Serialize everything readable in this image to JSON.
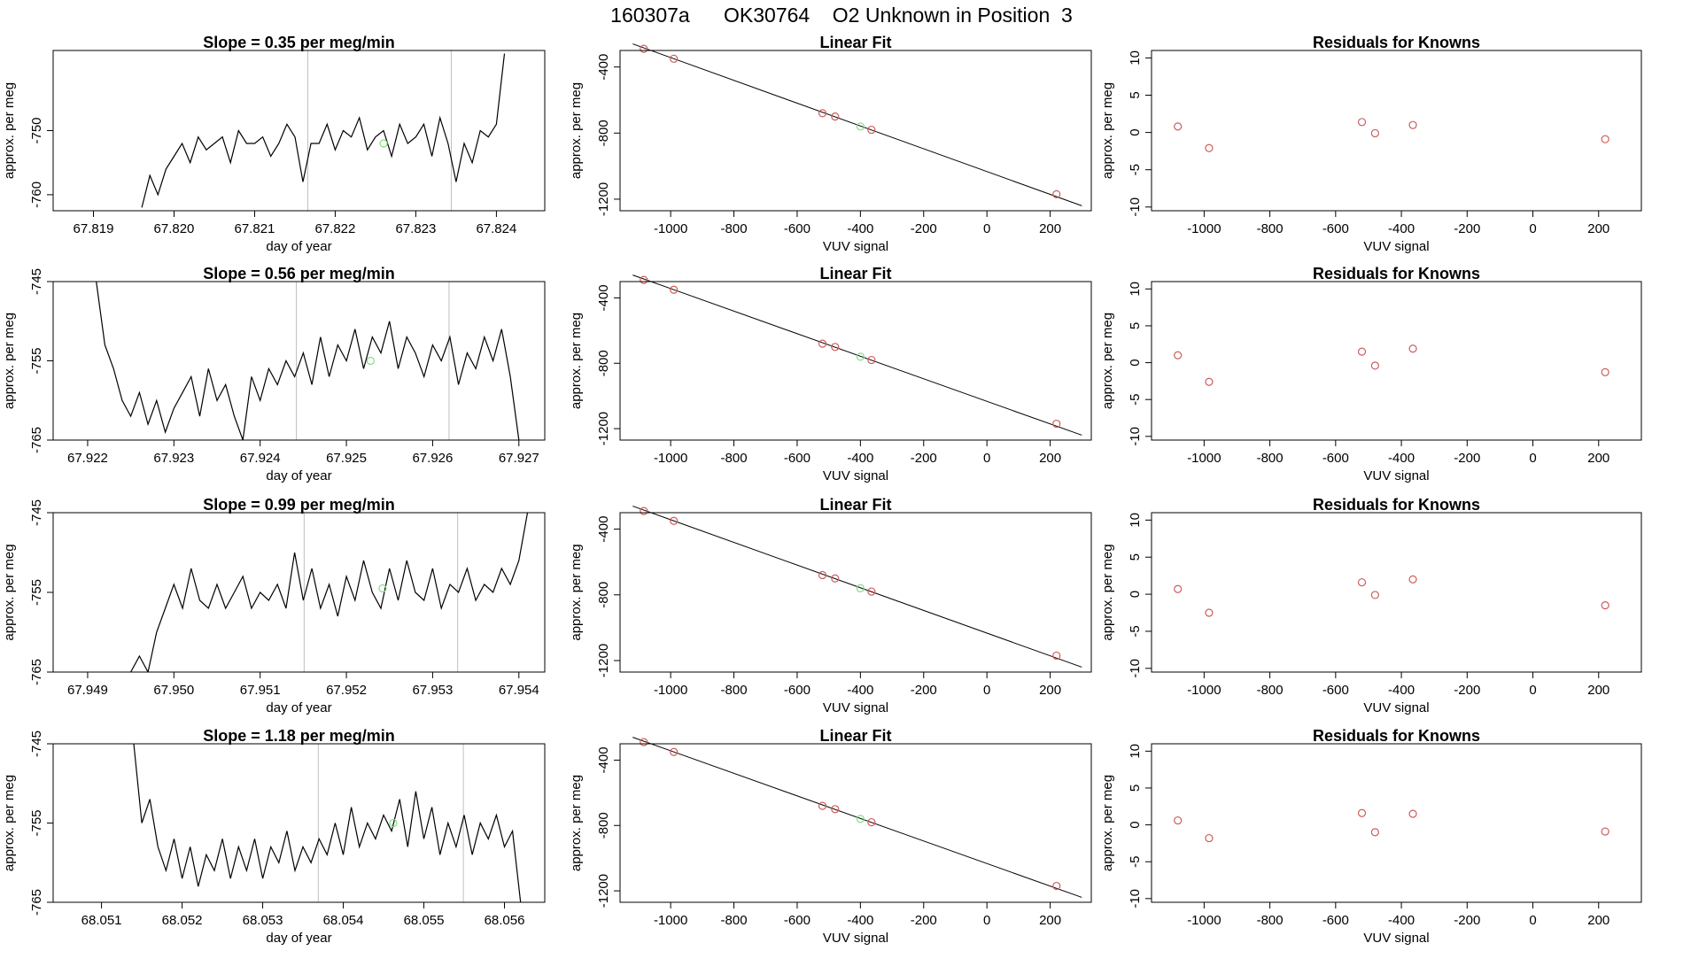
{
  "page": {
    "title": "160307a      OK30764    O2 Unknown in Position  3"
  },
  "colors": {
    "trace": "#000000",
    "known_point": "#cd5c5c",
    "unknown_point": "#7fe07f",
    "vline": "#bfbfbf"
  },
  "chart_data": [
    {
      "type": "line",
      "row": 0,
      "col": 0,
      "title": "Slope =  0.35  per meg/min",
      "xlabel": "day of year",
      "ylabel": "approx. per meg",
      "xlim": [
        67.8185,
        67.8246
      ],
      "ylim": [
        -762.5,
        -737.5
      ],
      "xticks": [
        "67.819",
        "67.820",
        "67.821",
        "67.822",
        "67.823",
        "67.824"
      ],
      "yticks": [
        "-750",
        "-760"
      ],
      "vlines": [
        67.82166,
        67.82344
      ],
      "unknown_point": [
        67.8226,
        -752.0
      ],
      "x": [
        67.8196,
        67.8197,
        67.8198,
        67.8199,
        67.82,
        67.8201,
        67.8202,
        67.8203,
        67.8204,
        67.8205,
        67.8206,
        67.8207,
        67.8208,
        67.8209,
        67.821,
        67.8211,
        67.8212,
        67.8213,
        67.8214,
        67.8215,
        67.8216,
        67.8217,
        67.8218,
        67.8219,
        67.822,
        67.8221,
        67.8222,
        67.8223,
        67.8224,
        67.8225,
        67.8226,
        67.8227,
        67.8228,
        67.8229,
        67.823,
        67.8231,
        67.8232,
        67.8233,
        67.8234,
        67.8235,
        67.8236,
        67.8237,
        67.8238,
        67.8239,
        67.824,
        67.8241
      ],
      "y": [
        -762,
        -757,
        -760,
        -756,
        -754,
        -752,
        -755,
        -751,
        -753,
        -752,
        -751,
        -755,
        -750,
        -752,
        -752,
        -751,
        -754,
        -752,
        -749,
        -751,
        -758,
        -752,
        -752,
        -749,
        -753,
        -750,
        -751,
        -748,
        -753,
        -751,
        -750,
        -754,
        -749,
        -752,
        -751,
        -749,
        -754,
        -748,
        -752,
        -758,
        -752,
        -755,
        -750,
        -751,
        -749,
        -738
      ]
    },
    {
      "type": "scatter",
      "row": 0,
      "col": 1,
      "title": "Linear Fit",
      "xlabel": "VUV signal",
      "ylabel": "approx. per meg",
      "xlim": [
        -1160,
        330
      ],
      "ylim": [
        -1270,
        -300
      ],
      "xticks": [
        "-1000",
        "-800",
        "-600",
        "-400",
        "-200",
        "0",
        "200"
      ],
      "yticks": [
        "-400",
        "-800",
        "-1200"
      ],
      "fit_line": [
        [
          -1120,
          -260
        ],
        [
          300,
          -1240
        ]
      ],
      "knowns": [
        [
          -1085,
          -290
        ],
        [
          -990,
          -350
        ],
        [
          -520,
          -680
        ],
        [
          -480,
          -700
        ],
        [
          -365,
          -780
        ],
        [
          220,
          -1170
        ]
      ],
      "unknown": [
        -400,
        -760
      ]
    },
    {
      "type": "scatter",
      "row": 0,
      "col": 2,
      "title": "Residuals for Knowns",
      "xlabel": "VUV signal",
      "ylabel": "approx. per meg",
      "xlim": [
        -1160,
        330
      ],
      "ylim": [
        -10.5,
        11
      ],
      "xticks": [
        "-1000",
        "-800",
        "-600",
        "-400",
        "-200",
        "0",
        "200"
      ],
      "yticks": [
        "10",
        "5",
        "0",
        "-5",
        "-10"
      ],
      "points": [
        [
          -1080,
          0.8
        ],
        [
          -985,
          -2.1
        ],
        [
          -520,
          1.4
        ],
        [
          -480,
          -0.1
        ],
        [
          -365,
          1.0
        ],
        [
          220,
          -0.9
        ]
      ]
    },
    {
      "type": "line",
      "row": 1,
      "col": 0,
      "title": "Slope =  0.56  per meg/min",
      "xlabel": "day of year",
      "ylabel": "approx. per meg",
      "xlim": [
        67.9216,
        67.9273
      ],
      "ylim": [
        -765,
        -745
      ],
      "xticks": [
        "67.922",
        "67.923",
        "67.924",
        "67.925",
        "67.926",
        "67.927"
      ],
      "yticks": [
        "-745",
        "-755",
        "-765"
      ],
      "vlines": [
        67.92442,
        67.92619
      ],
      "unknown_point": [
        67.92528,
        -755.0
      ],
      "x": [
        67.9221,
        67.9222,
        67.9223,
        67.9224,
        67.9225,
        67.9226,
        67.9227,
        67.9228,
        67.9229,
        67.923,
        67.9231,
        67.9232,
        67.9233,
        67.9234,
        67.9235,
        67.9236,
        67.9237,
        67.9238,
        67.9239,
        67.924,
        67.9241,
        67.9242,
        67.9243,
        67.9244,
        67.9245,
        67.9246,
        67.9247,
        67.9248,
        67.9249,
        67.925,
        67.9251,
        67.9252,
        67.9253,
        67.9254,
        67.9255,
        67.9256,
        67.9257,
        67.9258,
        67.9259,
        67.926,
        67.9261,
        67.9262,
        67.9263,
        67.9264,
        67.9265,
        67.9266,
        67.9267,
        67.9268,
        67.9269,
        67.927
      ],
      "y": [
        -745,
        -753,
        -756,
        -760,
        -762,
        -759,
        -763,
        -760,
        -764,
        -761,
        -759,
        -757,
        -762,
        -756,
        -760,
        -758,
        -762,
        -765,
        -757,
        -760,
        -756,
        -758,
        -755,
        -757,
        -754,
        -758,
        -752,
        -757,
        -753,
        -755,
        -751,
        -756,
        -752,
        -754,
        -750,
        -756,
        -752,
        -754,
        -757,
        -753,
        -755,
        -752,
        -758,
        -754,
        -756,
        -752,
        -755,
        -751,
        -757,
        -765
      ]
    },
    {
      "type": "scatter",
      "row": 1,
      "col": 1,
      "title": "Linear Fit",
      "xlabel": "VUV signal",
      "ylabel": "approx. per meg",
      "xlim": [
        -1160,
        330
      ],
      "ylim": [
        -1270,
        -300
      ],
      "xticks": [
        "-1000",
        "-800",
        "-600",
        "-400",
        "-200",
        "0",
        "200"
      ],
      "yticks": [
        "-400",
        "-800",
        "-1200"
      ],
      "fit_line": [
        [
          -1120,
          -260
        ],
        [
          300,
          -1240
        ]
      ],
      "knowns": [
        [
          -1085,
          -290
        ],
        [
          -990,
          -350
        ],
        [
          -520,
          -680
        ],
        [
          -480,
          -700
        ],
        [
          -365,
          -780
        ],
        [
          220,
          -1170
        ]
      ],
      "unknown": [
        -400,
        -760
      ]
    },
    {
      "type": "scatter",
      "row": 1,
      "col": 2,
      "title": "Residuals for Knowns",
      "xlabel": "VUV signal",
      "ylabel": "approx. per meg",
      "xlim": [
        -1160,
        330
      ],
      "ylim": [
        -10.5,
        11
      ],
      "xticks": [
        "-1000",
        "-800",
        "-600",
        "-400",
        "-200",
        "0",
        "200"
      ],
      "yticks": [
        "10",
        "5",
        "0",
        "-5",
        "-10"
      ],
      "points": [
        [
          -1080,
          1.0
        ],
        [
          -985,
          -2.6
        ],
        [
          -520,
          1.5
        ],
        [
          -480,
          -0.4
        ],
        [
          -365,
          1.9
        ],
        [
          220,
          -1.3
        ]
      ]
    },
    {
      "type": "line",
      "row": 2,
      "col": 0,
      "title": "Slope =  0.99  per meg/min",
      "xlabel": "day of year",
      "ylabel": "approx. per meg",
      "xlim": [
        67.9486,
        67.9543
      ],
      "ylim": [
        -765,
        -745
      ],
      "xticks": [
        "67.949",
        "67.950",
        "67.951",
        "67.952",
        "67.953",
        "67.954"
      ],
      "yticks": [
        "-745",
        "-755",
        "-765"
      ],
      "vlines": [
        67.95151,
        67.95329
      ],
      "unknown_point": [
        67.95242,
        -754.5
      ],
      "x": [
        67.9495,
        67.9496,
        67.9497,
        67.9498,
        67.9499,
        67.95,
        67.9501,
        67.9502,
        67.9503,
        67.9504,
        67.9505,
        67.9506,
        67.9507,
        67.9508,
        67.9509,
        67.951,
        67.9511,
        67.9512,
        67.9513,
        67.9514,
        67.9515,
        67.9516,
        67.9517,
        67.9518,
        67.9519,
        67.952,
        67.9521,
        67.9522,
        67.9523,
        67.9524,
        67.9525,
        67.9526,
        67.9527,
        67.9528,
        67.9529,
        67.953,
        67.9531,
        67.9532,
        67.9533,
        67.9534,
        67.9535,
        67.9536,
        67.9537,
        67.9538,
        67.9539,
        67.954,
        67.9541
      ],
      "y": [
        -765,
        -763,
        -765,
        -760,
        -757,
        -754,
        -757,
        -752,
        -756,
        -757,
        -754,
        -757,
        -755,
        -753,
        -757,
        -755,
        -756,
        -754,
        -757,
        -750,
        -756,
        -752,
        -757,
        -754,
        -758,
        -753,
        -756,
        -751,
        -755,
        -757,
        -752,
        -756,
        -751,
        -755,
        -756,
        -752,
        -757,
        -754,
        -755,
        -752,
        -756,
        -754,
        -755,
        -752,
        -754,
        -751,
        -745
      ]
    },
    {
      "type": "scatter",
      "row": 2,
      "col": 1,
      "title": "Linear Fit",
      "xlabel": "VUV signal",
      "ylabel": "approx. per meg",
      "xlim": [
        -1160,
        330
      ],
      "ylim": [
        -1270,
        -300
      ],
      "xticks": [
        "-1000",
        "-800",
        "-600",
        "-400",
        "-200",
        "0",
        "200"
      ],
      "yticks": [
        "-400",
        "-800",
        "-1200"
      ],
      "fit_line": [
        [
          -1120,
          -260
        ],
        [
          300,
          -1240
        ]
      ],
      "knowns": [
        [
          -1085,
          -290
        ],
        [
          -990,
          -350
        ],
        [
          -520,
          -680
        ],
        [
          -480,
          -700
        ],
        [
          -365,
          -780
        ],
        [
          220,
          -1170
        ]
      ],
      "unknown": [
        -400,
        -760
      ]
    },
    {
      "type": "scatter",
      "row": 2,
      "col": 2,
      "title": "Residuals for Knowns",
      "xlabel": "VUV signal",
      "ylabel": "approx. per meg",
      "xlim": [
        -1160,
        330
      ],
      "ylim": [
        -10.5,
        11
      ],
      "xticks": [
        "-1000",
        "-800",
        "-600",
        "-400",
        "-200",
        "0",
        "200"
      ],
      "yticks": [
        "10",
        "5",
        "0",
        "-5",
        "-10"
      ],
      "points": [
        [
          -1080,
          0.7
        ],
        [
          -985,
          -2.5
        ],
        [
          -520,
          1.6
        ],
        [
          -480,
          -0.1
        ],
        [
          -365,
          2.0
        ],
        [
          220,
          -1.5
        ]
      ]
    },
    {
      "type": "line",
      "row": 3,
      "col": 0,
      "title": "Slope =  1.18  per meg/min",
      "xlabel": "day of year",
      "ylabel": "approx. per meg",
      "xlim": [
        68.0504,
        68.0565
      ],
      "ylim": [
        -765,
        -745
      ],
      "xticks": [
        "68.051",
        "68.052",
        "68.053",
        "68.054",
        "68.055",
        "68.056"
      ],
      "yticks": [
        "-745",
        "-755",
        "-765"
      ],
      "vlines": [
        68.05369,
        68.05549
      ],
      "unknown_point": [
        68.05462,
        -755.0
      ],
      "x": [
        68.0514,
        68.0515,
        68.0516,
        68.0517,
        68.0518,
        68.0519,
        68.052,
        68.0521,
        68.0522,
        68.0523,
        68.0524,
        68.0525,
        68.0526,
        68.0527,
        68.0528,
        68.0529,
        68.053,
        68.0531,
        68.0532,
        68.0533,
        68.0534,
        68.0535,
        68.0536,
        68.0537,
        68.0538,
        68.0539,
        68.054,
        68.0541,
        68.0542,
        68.0543,
        68.0544,
        68.0545,
        68.0546,
        68.0547,
        68.0548,
        68.0549,
        68.055,
        68.0551,
        68.0552,
        68.0553,
        68.0554,
        68.0555,
        68.0556,
        68.0557,
        68.0558,
        68.0559,
        68.056,
        68.0561,
        68.0562
      ],
      "y": [
        -745,
        -755,
        -752,
        -758,
        -761,
        -757,
        -762,
        -758,
        -763,
        -759,
        -761,
        -757,
        -762,
        -758,
        -761,
        -757,
        -762,
        -758,
        -760,
        -756,
        -761,
        -758,
        -760,
        -757,
        -759,
        -755,
        -759,
        -753,
        -758,
        -755,
        -757,
        -754,
        -756,
        -752,
        -758,
        -751,
        -757,
        -753,
        -759,
        -755,
        -758,
        -754,
        -759,
        -755,
        -757,
        -754,
        -758,
        -756,
        -765
      ]
    },
    {
      "type": "scatter",
      "row": 3,
      "col": 1,
      "title": "Linear Fit",
      "xlabel": "VUV signal",
      "ylabel": "approx. per meg",
      "xlim": [
        -1160,
        330
      ],
      "ylim": [
        -1270,
        -300
      ],
      "xticks": [
        "-1000",
        "-800",
        "-600",
        "-400",
        "-200",
        "0",
        "200"
      ],
      "yticks": [
        "-400",
        "-800",
        "-1200"
      ],
      "fit_line": [
        [
          -1120,
          -260
        ],
        [
          300,
          -1240
        ]
      ],
      "knowns": [
        [
          -1085,
          -290
        ],
        [
          -990,
          -350
        ],
        [
          -520,
          -680
        ],
        [
          -480,
          -700
        ],
        [
          -365,
          -780
        ],
        [
          220,
          -1170
        ]
      ],
      "unknown": [
        -400,
        -760
      ]
    },
    {
      "type": "scatter",
      "row": 3,
      "col": 2,
      "title": "Residuals for Knowns",
      "xlabel": "VUV signal",
      "ylabel": "approx. per meg",
      "xlim": [
        -1160,
        330
      ],
      "ylim": [
        -10.5,
        11
      ],
      "xticks": [
        "-1000",
        "-800",
        "-600",
        "-400",
        "-200",
        "0",
        "200"
      ],
      "yticks": [
        "10",
        "5",
        "0",
        "-5",
        "-10"
      ],
      "points": [
        [
          -1080,
          0.6
        ],
        [
          -985,
          -1.8
        ],
        [
          -520,
          1.6
        ],
        [
          -480,
          -1.0
        ],
        [
          -365,
          1.5
        ],
        [
          220,
          -0.9
        ]
      ]
    }
  ]
}
